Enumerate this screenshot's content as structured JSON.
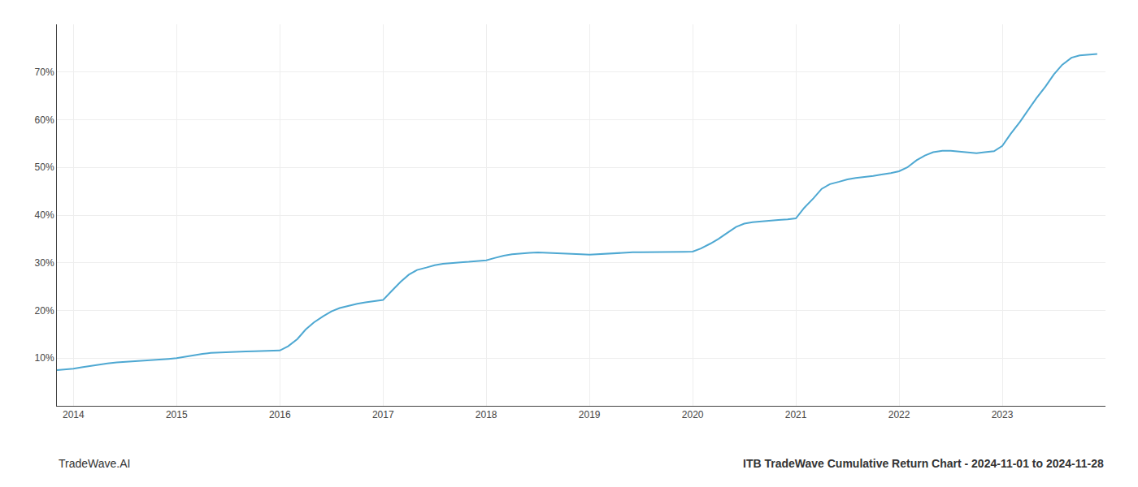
{
  "chart_data": {
    "type": "line",
    "annotations": [
      "TradeWave.AI",
      "ITB TradeWave Cumulative Return Chart - 2024-11-01 to 2024-11-28"
    ],
    "color": "#4EA8D2",
    "grid": true,
    "x": [
      2013.84,
      2014.0,
      2014.08,
      2014.17,
      2014.25,
      2014.33,
      2014.42,
      2014.5,
      2014.58,
      2014.67,
      2014.75,
      2014.83,
      2014.92,
      2015.0,
      2015.08,
      2015.17,
      2015.25,
      2015.33,
      2015.42,
      2015.5,
      2015.58,
      2015.67,
      2015.75,
      2015.83,
      2015.92,
      2016.0,
      2016.08,
      2016.17,
      2016.25,
      2016.33,
      2016.42,
      2016.5,
      2016.58,
      2016.67,
      2016.75,
      2016.83,
      2016.92,
      2017.0,
      2017.08,
      2017.17,
      2017.25,
      2017.33,
      2017.42,
      2017.5,
      2017.58,
      2017.67,
      2017.75,
      2017.83,
      2017.92,
      2018.0,
      2018.08,
      2018.17,
      2018.25,
      2018.33,
      2018.42,
      2018.5,
      2018.58,
      2018.67,
      2018.75,
      2018.83,
      2018.92,
      2019.0,
      2019.08,
      2019.17,
      2019.25,
      2019.33,
      2019.42,
      2019.5,
      2019.58,
      2019.67,
      2019.75,
      2019.83,
      2019.92,
      2020.0,
      2020.08,
      2020.17,
      2020.25,
      2020.33,
      2020.42,
      2020.5,
      2020.58,
      2020.67,
      2020.75,
      2020.83,
      2020.92,
      2021.0,
      2021.08,
      2021.17,
      2021.25,
      2021.33,
      2021.42,
      2021.5,
      2021.58,
      2021.67,
      2021.75,
      2021.83,
      2021.92,
      2022.0,
      2022.08,
      2022.17,
      2022.25,
      2022.33,
      2022.42,
      2022.5,
      2022.58,
      2022.67,
      2022.75,
      2022.83,
      2022.92,
      2023.0,
      2023.08,
      2023.17,
      2023.25,
      2023.33,
      2023.42,
      2023.5,
      2023.58,
      2023.67,
      2023.75,
      2023.83,
      2023.92
    ],
    "values": [
      7.5,
      7.8,
      8.1,
      8.4,
      8.7,
      8.9,
      9.1,
      9.2,
      9.4,
      9.5,
      9.6,
      9.7,
      9.85,
      10.0,
      10.3,
      10.6,
      10.9,
      11.1,
      11.2,
      11.3,
      11.35,
      11.4,
      11.45,
      11.5,
      11.55,
      11.6,
      12.5,
      14.0,
      16.0,
      17.5,
      18.8,
      19.8,
      20.5,
      21.0,
      21.4,
      21.7,
      21.9,
      22.2,
      24.0,
      26.0,
      27.5,
      28.5,
      29.0,
      29.5,
      29.8,
      30.0,
      30.1,
      30.2,
      30.3,
      30.5,
      31.0,
      31.5,
      31.8,
      32.0,
      32.1,
      32.15,
      32.1,
      32.05,
      32.0,
      31.9,
      31.8,
      31.7,
      31.8,
      32.0,
      32.1,
      32.15,
      32.2,
      32.2,
      32.2,
      32.25,
      32.25,
      32.3,
      32.3,
      32.35,
      33.0,
      34.0,
      35.0,
      36.2,
      37.5,
      38.2,
      38.5,
      38.7,
      38.9,
      39.0,
      39.1,
      39.3,
      41.5,
      43.5,
      45.5,
      46.5,
      47.0,
      47.5,
      47.8,
      48.0,
      48.2,
      48.5,
      48.8,
      49.2,
      50.0,
      51.5,
      52.5,
      53.2,
      53.5,
      53.5,
      53.3,
      53.1,
      53.0,
      53.2,
      53.4,
      54.5,
      57.0,
      59.5,
      62.0,
      64.5,
      67.0,
      69.5,
      71.5,
      73.0,
      73.5,
      73.7,
      73.8
    ],
    "xlim": [
      2013.84,
      2024.0
    ],
    "xticks": [
      2014,
      2015,
      2016,
      2017,
      2018,
      2019,
      2020,
      2021,
      2022,
      2023
    ],
    "ylim": [
      0,
      80
    ],
    "yticks": [
      {
        "value": 10,
        "label": "10%"
      },
      {
        "value": 20,
        "label": "20%"
      },
      {
        "value": 30,
        "label": "30%"
      },
      {
        "value": 40,
        "label": "40%"
      },
      {
        "value": 50,
        "label": "50%"
      },
      {
        "value": 60,
        "label": "60%"
      },
      {
        "value": 70,
        "label": "70%"
      }
    ]
  }
}
